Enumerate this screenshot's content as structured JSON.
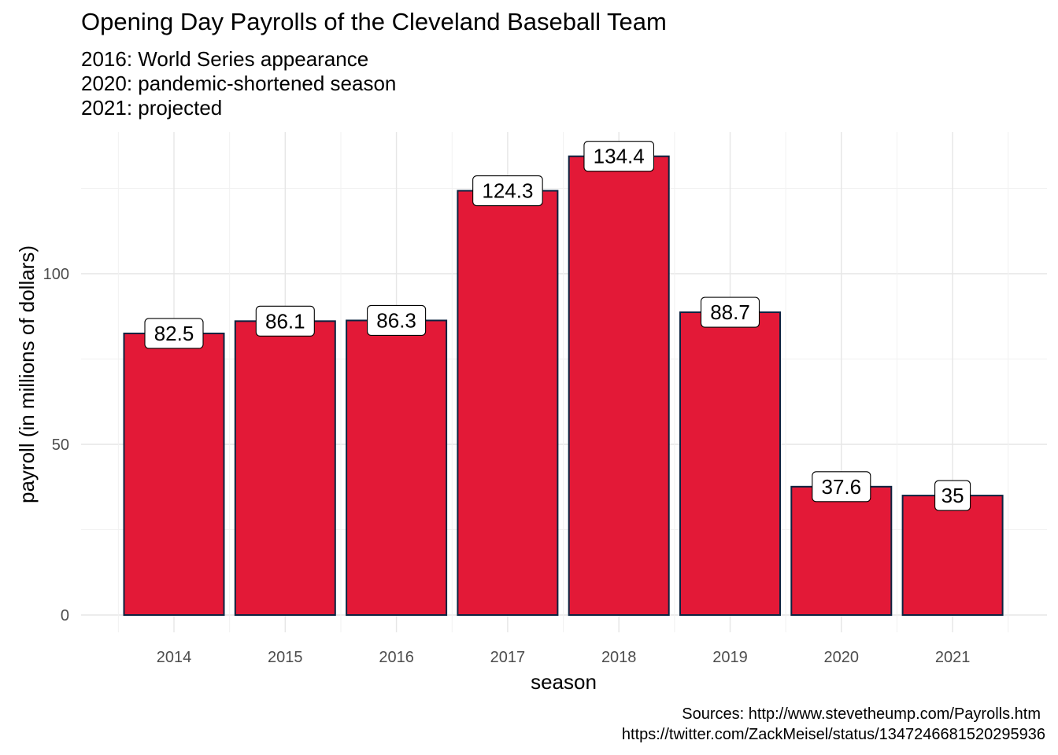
{
  "chart_data": {
    "type": "bar",
    "title": "Opening Day Payrolls of the Cleveland Baseball Team",
    "subtitle": [
      "2016: World Series appearance",
      "2020: pandemic-shortened season",
      "2021: projected"
    ],
    "xlabel": "season",
    "ylabel": "payroll (in millions of dollars)",
    "categories": [
      "2014",
      "2015",
      "2016",
      "2017",
      "2018",
      "2019",
      "2020",
      "2021"
    ],
    "values": [
      82.5,
      86.1,
      86.3,
      124.3,
      134.4,
      88.7,
      37.6,
      35
    ],
    "data_labels": [
      "82.5",
      "86.1",
      "86.3",
      "124.3",
      "134.4",
      "88.7",
      "37.6",
      "35"
    ],
    "yticks": [
      0,
      50,
      100
    ],
    "ylim": [
      -6.7,
      141.1
    ],
    "grid": true,
    "bar_fill": "#E31937",
    "bar_outline": "#0C2340",
    "caption": [
      "Sources:  http://www.stevetheump.com/Payrolls.htm",
      "https://twitter.com/ZackMeisel/status/1347246681520295936"
    ]
  }
}
